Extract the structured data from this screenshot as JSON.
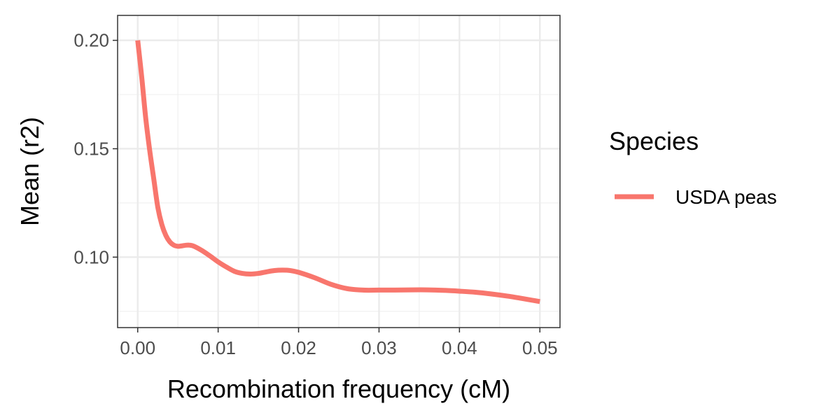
{
  "chart_data": {
    "type": "line",
    "title": "",
    "xlabel": "Recombination frequency (cM)",
    "ylabel": "Mean (r2)",
    "xlim": [
      -0.0025,
      0.0525
    ],
    "ylim": [
      0.0675,
      0.2115
    ],
    "x_ticks": [
      0.0,
      0.01,
      0.02,
      0.03,
      0.04,
      0.05
    ],
    "x_tick_labels": [
      "0.00",
      "0.01",
      "0.02",
      "0.03",
      "0.04",
      "0.05"
    ],
    "y_ticks": [
      0.1,
      0.15,
      0.2
    ],
    "y_tick_labels": [
      "0.10",
      "0.15",
      "0.20"
    ],
    "grid": true,
    "legend": {
      "title": "Species",
      "position": "right"
    },
    "series": [
      {
        "name": "USDA peas",
        "color": "#F8766D",
        "x": [
          0.0,
          0.0005,
          0.001,
          0.0015,
          0.002,
          0.0025,
          0.003,
          0.0035,
          0.004,
          0.0045,
          0.005,
          0.0055,
          0.006,
          0.0065,
          0.007,
          0.008,
          0.009,
          0.01,
          0.011,
          0.012,
          0.013,
          0.014,
          0.015,
          0.016,
          0.017,
          0.018,
          0.019,
          0.02,
          0.022,
          0.024,
          0.026,
          0.028,
          0.03,
          0.032,
          0.034,
          0.036,
          0.038,
          0.04,
          0.042,
          0.044,
          0.046,
          0.048,
          0.05
        ],
        "y": [
          0.2,
          0.183,
          0.164,
          0.149,
          0.136,
          0.123,
          0.115,
          0.11,
          0.107,
          0.1055,
          0.105,
          0.1052,
          0.1055,
          0.1055,
          0.105,
          0.103,
          0.1005,
          0.0978,
          0.0955,
          0.0935,
          0.0925,
          0.0922,
          0.0925,
          0.0932,
          0.0938,
          0.094,
          0.0938,
          0.093,
          0.0905,
          0.0875,
          0.0855,
          0.0848,
          0.0848,
          0.0848,
          0.0849,
          0.0849,
          0.0847,
          0.0843,
          0.0838,
          0.083,
          0.082,
          0.0808,
          0.0795
        ]
      }
    ]
  }
}
